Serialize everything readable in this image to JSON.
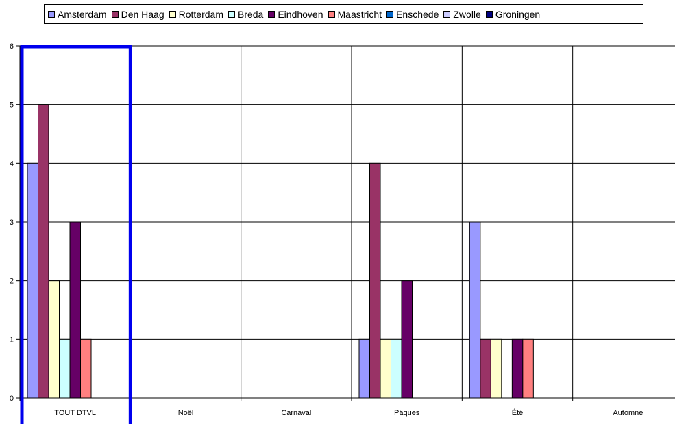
{
  "chart_data": {
    "type": "bar",
    "categories": [
      "TOUT DTVL",
      "Noël",
      "Carnaval",
      "Pâques",
      "Été",
      "Automne"
    ],
    "series": [
      {
        "name": "Amsterdam",
        "color": "#9999ff",
        "values": [
          4,
          0,
          0,
          1,
          3,
          0
        ]
      },
      {
        "name": "Den Haag",
        "color": "#993366",
        "values": [
          5,
          0,
          0,
          4,
          1,
          0
        ]
      },
      {
        "name": "Rotterdam",
        "color": "#ffffcc",
        "values": [
          2,
          0,
          0,
          1,
          1,
          0
        ]
      },
      {
        "name": "Breda",
        "color": "#ccffff",
        "values": [
          1,
          0,
          0,
          1,
          0,
          0
        ]
      },
      {
        "name": "Eindhoven",
        "color": "#660066",
        "values": [
          3,
          0,
          0,
          2,
          1,
          0
        ]
      },
      {
        "name": "Maastricht",
        "color": "#ff8080",
        "values": [
          1,
          0,
          0,
          0,
          1,
          0
        ]
      },
      {
        "name": "Enschede",
        "color": "#0066cc",
        "values": [
          0,
          0,
          0,
          0,
          0,
          0
        ]
      },
      {
        "name": "Zwolle",
        "color": "#ccccff",
        "values": [
          0,
          0,
          0,
          0,
          0,
          0
        ]
      },
      {
        "name": "Groningen",
        "color": "#000080",
        "values": [
          0,
          0,
          0,
          0,
          0,
          0
        ]
      }
    ],
    "ylim": [
      0,
      6
    ],
    "yticks": [
      "0",
      "1",
      "2",
      "3",
      "4",
      "5",
      "6"
    ],
    "grid": true,
    "legend_position": "top",
    "highlight": {
      "category_index": 0,
      "color": "#0000ee"
    }
  }
}
